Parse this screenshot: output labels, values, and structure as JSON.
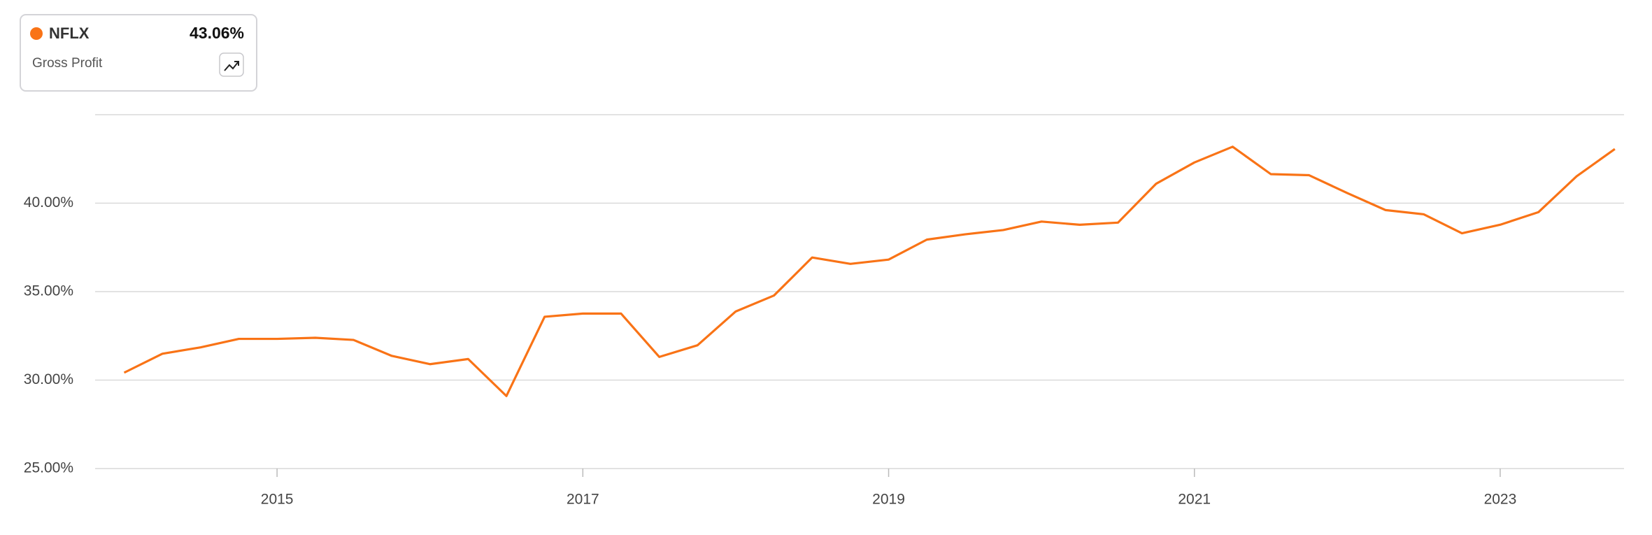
{
  "header": {
    "symbol": "NFLX",
    "latest": "43.06%",
    "metric": "Gross Profit"
  },
  "chart_data": {
    "type": "line",
    "x": [
      2014.0,
      2014.25,
      2014.5,
      2014.75,
      2015.0,
      2015.25,
      2015.5,
      2015.75,
      2016.0,
      2016.25,
      2016.5,
      2016.75,
      2017.0,
      2017.25,
      2017.5,
      2017.75,
      2018.0,
      2018.25,
      2018.5,
      2018.75,
      2019.0,
      2019.25,
      2019.5,
      2019.75,
      2020.0,
      2020.25,
      2020.5,
      2020.75,
      2021.0,
      2021.25,
      2021.5,
      2021.75,
      2022.0,
      2022.25,
      2022.5,
      2022.75,
      2023.0,
      2023.25,
      2023.5,
      2023.75
    ],
    "series": [
      {
        "name": "NFLX",
        "color": "#f97316",
        "values": [
          30.42,
          31.49,
          31.85,
          32.33,
          32.33,
          32.39,
          32.27,
          31.37,
          30.9,
          31.19,
          29.1,
          33.58,
          33.76,
          33.76,
          31.31,
          31.97,
          33.88,
          34.78,
          36.93,
          36.57,
          36.81,
          37.94,
          38.24,
          38.48,
          38.96,
          38.78,
          38.9,
          41.1,
          42.3,
          43.19,
          41.64,
          41.58,
          40.57,
          39.61,
          39.37,
          38.3,
          38.78,
          39.49,
          41.52,
          43.06
        ]
      }
    ],
    "xlim": [
      2013.81,
      2023.81
    ],
    "xticks": [
      2015,
      2017,
      2019,
      2021,
      2023
    ],
    "ylim": [
      25,
      45
    ],
    "yticks": [
      {
        "value": 25,
        "label": "25.00%"
      },
      {
        "value": 30,
        "label": "30.00%"
      },
      {
        "value": 35,
        "label": "35.00%"
      },
      {
        "value": 40,
        "label": "40.00%"
      }
    ],
    "grid": true
  }
}
